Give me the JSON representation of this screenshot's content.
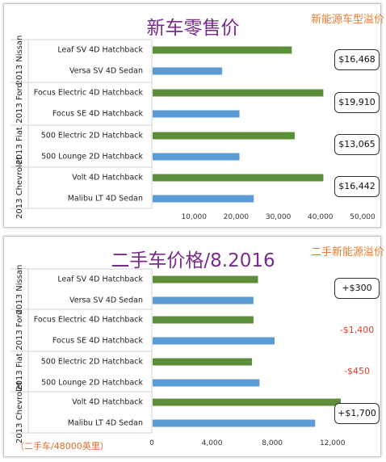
{
  "panels": [
    {
      "title": "新车零售价",
      "side_label": "新能源车型溢价",
      "premiums": [
        {
          "text": "$16,468",
          "color": "#111111",
          "boxed": true
        },
        {
          "text": "$19,910",
          "color": "#111111",
          "boxed": true
        },
        {
          "text": "$13,065",
          "color": "#111111",
          "boxed": true
        },
        {
          "text": "$16,442",
          "color": "#111111",
          "boxed": true
        }
      ]
    },
    {
      "title": "二手车价格/8.2016",
      "side_label": "二手新能源溢价",
      "premiums": [
        {
          "text": "+$300",
          "color": "#111111",
          "boxed": true
        },
        {
          "text": "-$1,400",
          "color": "#e23b2a",
          "boxed": false
        },
        {
          "text": "-$450",
          "color": "#e23b2a",
          "boxed": false
        },
        {
          "text": "+$1,700",
          "color": "#111111",
          "boxed": true
        }
      ],
      "footnote": "（二手车/48000英里）"
    }
  ],
  "chart_data": [
    {
      "type": "bar",
      "orientation": "horizontal",
      "title": "新车零售价",
      "groups": [
        {
          "label": "2013 Nissan",
          "items": [
            {
              "label": "Leaf SV 4D Hatchback",
              "value": 33000,
              "color": "#5c8f3a"
            },
            {
              "label": "Versa SV 4D Sedan",
              "value": 16500,
              "color": "#5b9bd5"
            }
          ]
        },
        {
          "label": "2013 Ford",
          "items": [
            {
              "label": "Focus Electric 4D Hatchback",
              "value": 40500,
              "color": "#5c8f3a"
            },
            {
              "label": "Focus SE 4D Hatchback",
              "value": 20600,
              "color": "#5b9bd5"
            }
          ]
        },
        {
          "label": "2013 Fiat",
          "items": [
            {
              "label": "500 Electric 2D Hatchback",
              "value": 33700,
              "color": "#5c8f3a"
            },
            {
              "label": "500 Lounge 2D Hatchback",
              "value": 20600,
              "color": "#5b9bd5"
            }
          ]
        },
        {
          "label": "2013 Chevrolet",
          "items": [
            {
              "label": "Volt  4D Hatchback",
              "value": 40500,
              "color": "#5c8f3a"
            },
            {
              "label": "Malibu LT 4D Sedan",
              "value": 24000,
              "color": "#5b9bd5"
            }
          ]
        }
      ],
      "xlim": [
        0,
        50000
      ],
      "xticks": [
        "10,000",
        "20,000",
        "30,000",
        "40,000",
        "50,000"
      ],
      "xtick_values": [
        10000,
        20000,
        30000,
        40000,
        50000
      ],
      "grid": false
    },
    {
      "type": "bar",
      "orientation": "horizontal",
      "title": "二手车价格/8.2016",
      "groups": [
        {
          "label": "2013 Nissan",
          "items": [
            {
              "label": "Leaf SV 4D Hatchback",
              "value": 7000,
              "color": "#5c8f3a"
            },
            {
              "label": "Versa SV 4D Sedan",
              "value": 6700,
              "color": "#5b9bd5"
            }
          ]
        },
        {
          "label": "2013 Ford",
          "items": [
            {
              "label": "Focus Electric 4D Hatchback",
              "value": 6700,
              "color": "#5c8f3a"
            },
            {
              "label": "Focus SE 4D Hatchback",
              "value": 8100,
              "color": "#5b9bd5"
            }
          ]
        },
        {
          "label": "2013 Fiat",
          "items": [
            {
              "label": "500 Electric 2D Hatchback",
              "value": 6600,
              "color": "#5c8f3a"
            },
            {
              "label": "500 Lounge 2D Hatchback",
              "value": 7100,
              "color": "#5b9bd5"
            }
          ]
        },
        {
          "label": "2013 Chevrolet",
          "items": [
            {
              "label": "Volt  4D Hatchback",
              "value": 12500,
              "color": "#5c8f3a"
            },
            {
              "label": "Malibu LT 4D Sedan",
              "value": 10800,
              "color": "#5b9bd5"
            }
          ]
        }
      ],
      "xlim": [
        0,
        14000
      ],
      "xticks": [
        "0",
        "4,000",
        "8,000",
        "12,000"
      ],
      "xtick_values": [
        0,
        4000,
        8000,
        12000
      ],
      "grid": false
    }
  ]
}
